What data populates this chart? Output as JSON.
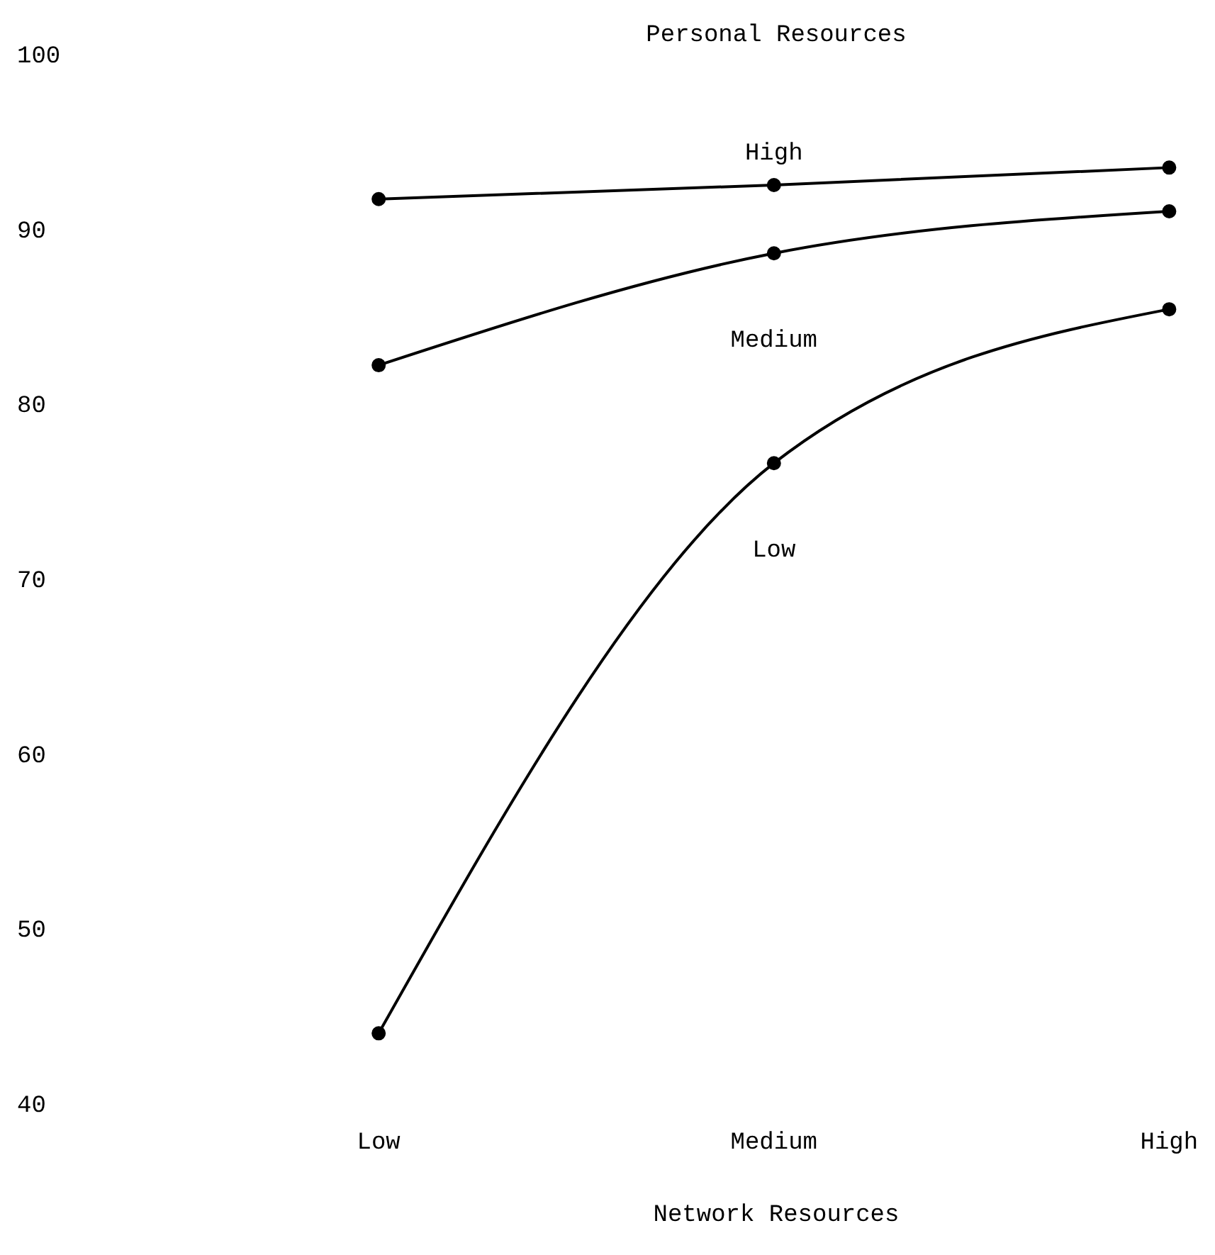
{
  "chart_data": {
    "type": "line",
    "legend_title": "Personal Resources",
    "xlabel": "Network Resources",
    "categories": [
      "Low",
      "Medium",
      "High"
    ],
    "ylim": [
      40,
      100
    ],
    "yticks": [
      40,
      50,
      60,
      70,
      80,
      90,
      100
    ],
    "marker": "circle",
    "line_style": "solid",
    "series": [
      {
        "name": "High",
        "color": "#000000",
        "values": [
          91.7,
          92.5,
          93.5
        ]
      },
      {
        "name": "Medium",
        "color": "#000000",
        "values": [
          82.2,
          88.6,
          91.0
        ]
      },
      {
        "name": "Low",
        "color": "#000000",
        "values": [
          44.0,
          76.6,
          85.4
        ]
      }
    ]
  }
}
